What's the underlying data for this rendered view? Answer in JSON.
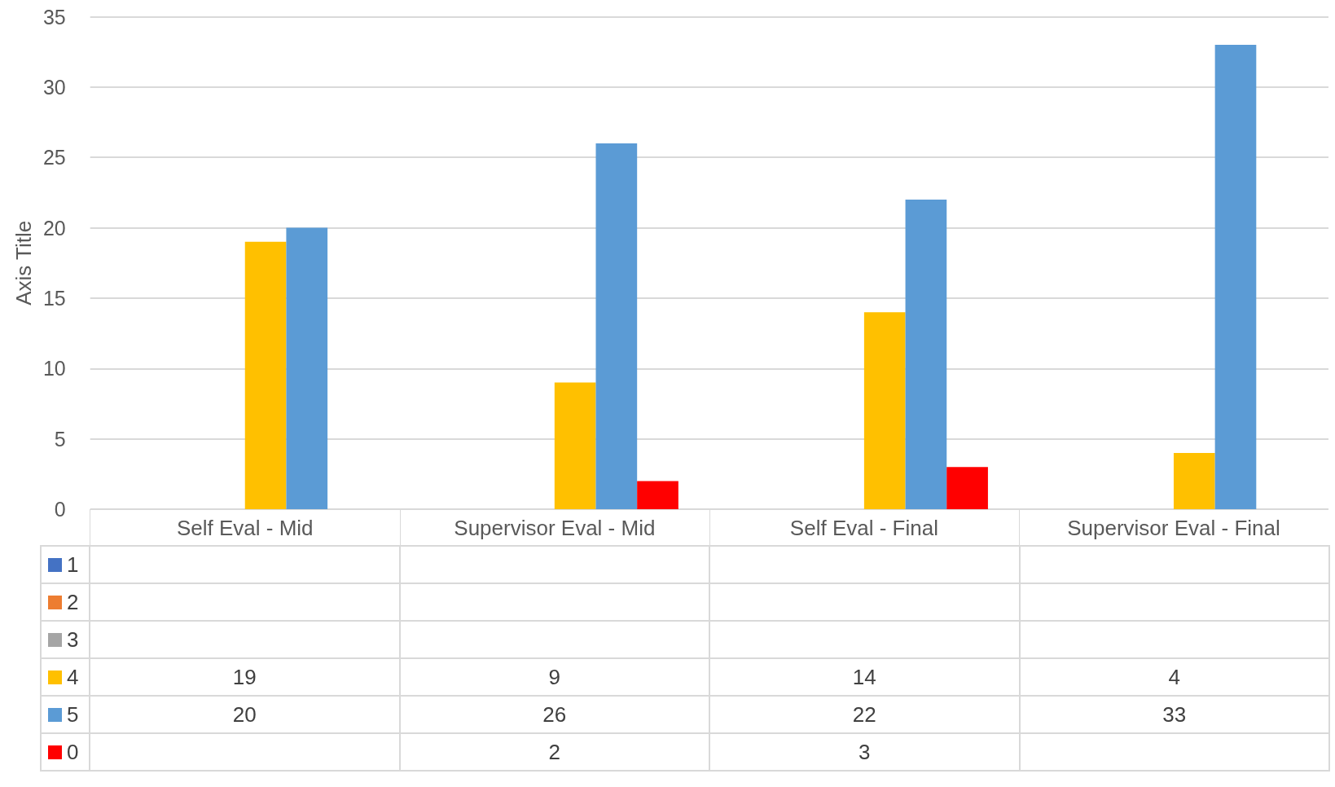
{
  "chart_data": {
    "type": "bar",
    "ylabel": "Axis Title",
    "categories": [
      "Self Eval - Mid",
      "Supervisor Eval - Mid",
      "Self Eval - Final",
      "Supervisor Eval - Final"
    ],
    "series": [
      {
        "name": "1",
        "color": "#4472c4",
        "values": [
          null,
          null,
          null,
          null
        ]
      },
      {
        "name": "2",
        "color": "#ed7d31",
        "values": [
          null,
          null,
          null,
          null
        ]
      },
      {
        "name": "3",
        "color": "#a5a5a5",
        "values": [
          null,
          null,
          null,
          null
        ]
      },
      {
        "name": "4",
        "color": "#ffc000",
        "values": [
          19,
          9,
          14,
          4
        ]
      },
      {
        "name": "5",
        "color": "#5b9bd5",
        "values": [
          20,
          26,
          22,
          33
        ]
      },
      {
        "name": "0",
        "color": "#ff0000",
        "values": [
          null,
          2,
          3,
          null
        ]
      }
    ],
    "ylim": [
      0,
      35
    ],
    "yticks": [
      0,
      5,
      10,
      15,
      20,
      25,
      30,
      35
    ],
    "grid": "y",
    "legend": "bottom",
    "data_labels": true
  }
}
